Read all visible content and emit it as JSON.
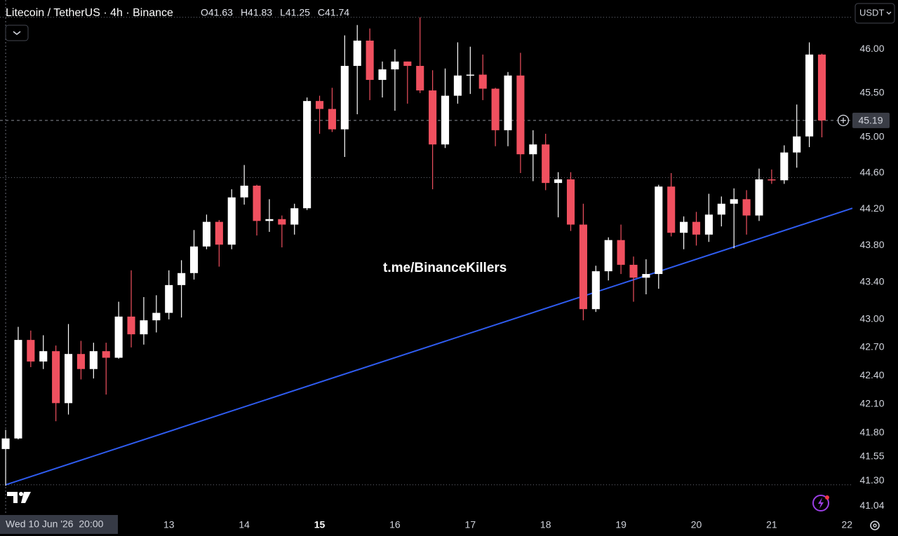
{
  "chart_data": {
    "type": "candlestick",
    "title": "Litecoin / TetherUS · 4h · Binance",
    "currency": "USDT",
    "watermark": "t.me/BinanceKillers",
    "crosshair": {
      "label": "Wed 10 Jun '26  20:00",
      "ohlc_labels": [
        "O41.63",
        "H41.83",
        "L41.25",
        "C41.74"
      ]
    },
    "log": true,
    "grid": false,
    "up_color": "#ffffff",
    "down_color": "#f0505f",
    "open": [
      41.63,
      41.74,
      42.78,
      42.55,
      42.66,
      42.11,
      42.63,
      42.47,
      42.66,
      42.59,
      43.03,
      42.84,
      42.99,
      43.07,
      43.37,
      43.5,
      43.79,
      44.06,
      43.81,
      44.33,
      44.46,
      44.07,
      44.09,
      44.03,
      44.21,
      45.41,
      45.32,
      45.09,
      45.81,
      46.1,
      45.65,
      45.77,
      45.86,
      45.81,
      45.53,
      44.92,
      45.47,
      45.7,
      45.71,
      45.55,
      45.08,
      45.7,
      44.81,
      44.92,
      44.49,
      44.53,
      44.03,
      43.11,
      43.52,
      43.86,
      43.59,
      43.45,
      43.49,
      44.45,
      43.94,
      44.06,
      43.92,
      44.14,
      44.26,
      44.31,
      44.13,
      44.53,
      44.52,
      44.83,
      45.01,
      45.94
    ],
    "high": [
      41.83,
      42.92,
      42.88,
      42.83,
      42.72,
      42.95,
      42.77,
      42.75,
      42.75,
      43.19,
      43.53,
      43.24,
      43.26,
      43.53,
      43.64,
      43.97,
      44.14,
      44.08,
      44.42,
      44.69,
      44.47,
      44.31,
      44.13,
      44.26,
      45.45,
      45.47,
      45.56,
      46.16,
      46.28,
      46.24,
      45.86,
      46.0,
      45.86,
      46.37,
      45.76,
      45.78,
      46.08,
      46.03,
      45.94,
      45.56,
      45.74,
      45.96,
      45.08,
      45.04,
      44.61,
      44.61,
      44.26,
      43.58,
      43.89,
      44.03,
      43.68,
      43.65,
      44.47,
      44.6,
      44.12,
      44.17,
      44.37,
      44.34,
      44.43,
      44.41,
      44.65,
      44.64,
      44.91,
      45.37,
      46.08,
      45.95
    ],
    "low": [
      41.25,
      41.73,
      42.49,
      42.47,
      41.92,
      41.99,
      42.36,
      42.37,
      42.2,
      42.58,
      42.7,
      42.73,
      42.86,
      43.0,
      43.02,
      43.43,
      43.76,
      43.57,
      43.76,
      44.25,
      43.91,
      43.95,
      43.78,
      43.92,
      44.19,
      45.04,
      45.06,
      44.78,
      45.26,
      45.42,
      45.45,
      45.3,
      45.38,
      45.5,
      44.42,
      44.88,
      45.38,
      45.49,
      45.42,
      44.9,
      44.9,
      44.6,
      44.51,
      44.41,
      44.11,
      43.96,
      42.99,
      43.08,
      43.42,
      43.49,
      43.19,
      43.27,
      43.33,
      43.9,
      43.76,
      43.8,
      43.84,
      44.01,
      43.77,
      43.92,
      44.07,
      44.48,
      44.48,
      44.66,
      44.89,
      45.0
    ],
    "close": [
      41.74,
      42.78,
      42.55,
      42.66,
      42.11,
      42.63,
      42.47,
      42.66,
      42.59,
      43.03,
      42.84,
      42.99,
      43.07,
      43.37,
      43.5,
      43.79,
      44.06,
      43.81,
      44.33,
      44.46,
      44.07,
      44.09,
      44.03,
      44.21,
      45.41,
      45.32,
      45.09,
      45.81,
      46.1,
      45.65,
      45.77,
      45.86,
      45.81,
      45.53,
      44.92,
      45.47,
      45.7,
      45.71,
      45.55,
      45.08,
      45.7,
      44.81,
      44.92,
      44.49,
      44.53,
      44.03,
      43.11,
      43.52,
      43.86,
      43.59,
      43.45,
      43.49,
      44.45,
      43.94,
      44.06,
      43.92,
      44.14,
      44.26,
      44.31,
      44.13,
      44.53,
      44.52,
      44.83,
      45.01,
      45.94,
      45.19
    ],
    "last_price": 45.19,
    "ylim": [
      40.95,
      46.57
    ],
    "yticks": [
      {
        "value": 46,
        "label": "46.00"
      },
      {
        "value": 45.5,
        "label": "45.50"
      },
      {
        "value": 45,
        "label": "45.00"
      },
      {
        "value": 44.6,
        "label": "44.60"
      },
      {
        "value": 44.2,
        "label": "44.20"
      },
      {
        "value": 43.8,
        "label": "43.80"
      },
      {
        "value": 43.4,
        "label": "43.40"
      },
      {
        "value": 43,
        "label": "43.00"
      },
      {
        "value": 42.7,
        "label": "42.70"
      },
      {
        "value": 42.4,
        "label": "42.40"
      },
      {
        "value": 42.1,
        "label": "42.10"
      },
      {
        "value": 41.8,
        "label": "41.80"
      },
      {
        "value": 41.55,
        "label": "41.55"
      },
      {
        "value": 41.3,
        "label": "41.30"
      },
      {
        "value": 41.04,
        "label": "41.04"
      }
    ],
    "xlim": [
      -0.45,
      67.43
    ],
    "xticks": [
      {
        "value": 13,
        "label": "13"
      },
      {
        "value": 19,
        "label": "14"
      },
      {
        "value": 25,
        "label": "15"
      },
      {
        "value": 31,
        "label": "16"
      },
      {
        "value": 37,
        "label": "17"
      },
      {
        "value": 43,
        "label": "18"
      },
      {
        "value": 49,
        "label": "19"
      },
      {
        "value": 55,
        "label": "20"
      },
      {
        "value": 61,
        "label": "21"
      },
      {
        "value": 67,
        "label": "22"
      }
    ],
    "hlines": [
      46.37,
      44.55,
      41.26
    ],
    "trendline": {
      "color": "#2f5cf0",
      "x": [
        0,
        67.43
      ],
      "y": [
        41.26,
        44.21
      ]
    }
  }
}
